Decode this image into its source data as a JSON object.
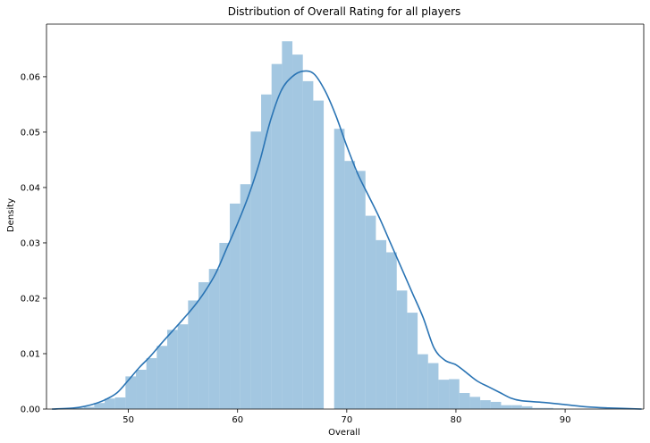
{
  "chart_data": {
    "type": "bar",
    "title": "Distribution of Overall Rating for all players",
    "xlabel": "Overall",
    "ylabel": "Density",
    "xlim": [
      42.5,
      97.2
    ],
    "ylim": [
      0,
      0.0695
    ],
    "xticks": [
      50,
      60,
      70,
      80,
      90
    ],
    "yticks": [
      0.0,
      0.01,
      0.02,
      0.03,
      0.04,
      0.05,
      0.06
    ],
    "ytick_labels": [
      "0.00",
      "0.01",
      "0.02",
      "0.03",
      "0.04",
      "0.05",
      "0.06"
    ],
    "grid": false,
    "histogram": {
      "bin_start": 44,
      "bin_width": 0.9556,
      "densities": [
        0.0,
        0.0002,
        0.0004,
        0.0011,
        0.0019,
        0.0021,
        0.0059,
        0.0071,
        0.0092,
        0.0114,
        0.0143,
        0.0153,
        0.0196,
        0.0229,
        0.0253,
        0.03,
        0.0371,
        0.0406,
        0.0501,
        0.0568,
        0.0623,
        0.0664,
        0.064,
        0.0592,
        0.0557,
        0.0,
        0.0506,
        0.0448,
        0.043,
        0.0349,
        0.0305,
        0.0283,
        0.0214,
        0.0174,
        0.0099,
        0.0083,
        0.0053,
        0.0054,
        0.0029,
        0.0022,
        0.0016,
        0.0013,
        0.0007,
        0.0007,
        0.0005,
        0.0002,
        0.0002,
        0.0001,
        0.0,
        0.0
      ]
    },
    "kde": {
      "x": [
        43,
        45,
        46,
        47,
        48,
        49,
        50,
        51,
        52,
        53,
        54,
        55,
        56,
        57,
        58,
        59,
        60,
        61,
        62,
        63,
        64,
        65,
        66,
        67,
        68,
        69,
        70,
        71,
        72,
        73,
        74,
        75,
        76,
        77,
        78,
        79,
        80,
        81,
        82,
        83,
        84,
        85,
        86,
        88,
        90,
        92,
        94,
        97
      ],
      "y": [
        0.0,
        0.0002,
        0.0005,
        0.001,
        0.0018,
        0.003,
        0.0052,
        0.0075,
        0.0095,
        0.0118,
        0.014,
        0.0162,
        0.0185,
        0.0212,
        0.0245,
        0.029,
        0.0335,
        0.0385,
        0.0445,
        0.052,
        0.0575,
        0.06,
        0.061,
        0.0605,
        0.0575,
        0.053,
        0.0475,
        0.0425,
        0.0385,
        0.0345,
        0.03,
        0.0255,
        0.021,
        0.0165,
        0.011,
        0.0088,
        0.008,
        0.0065,
        0.005,
        0.004,
        0.003,
        0.002,
        0.0015,
        0.0012,
        0.0008,
        0.0004,
        0.0002,
        0.0
      ]
    }
  }
}
